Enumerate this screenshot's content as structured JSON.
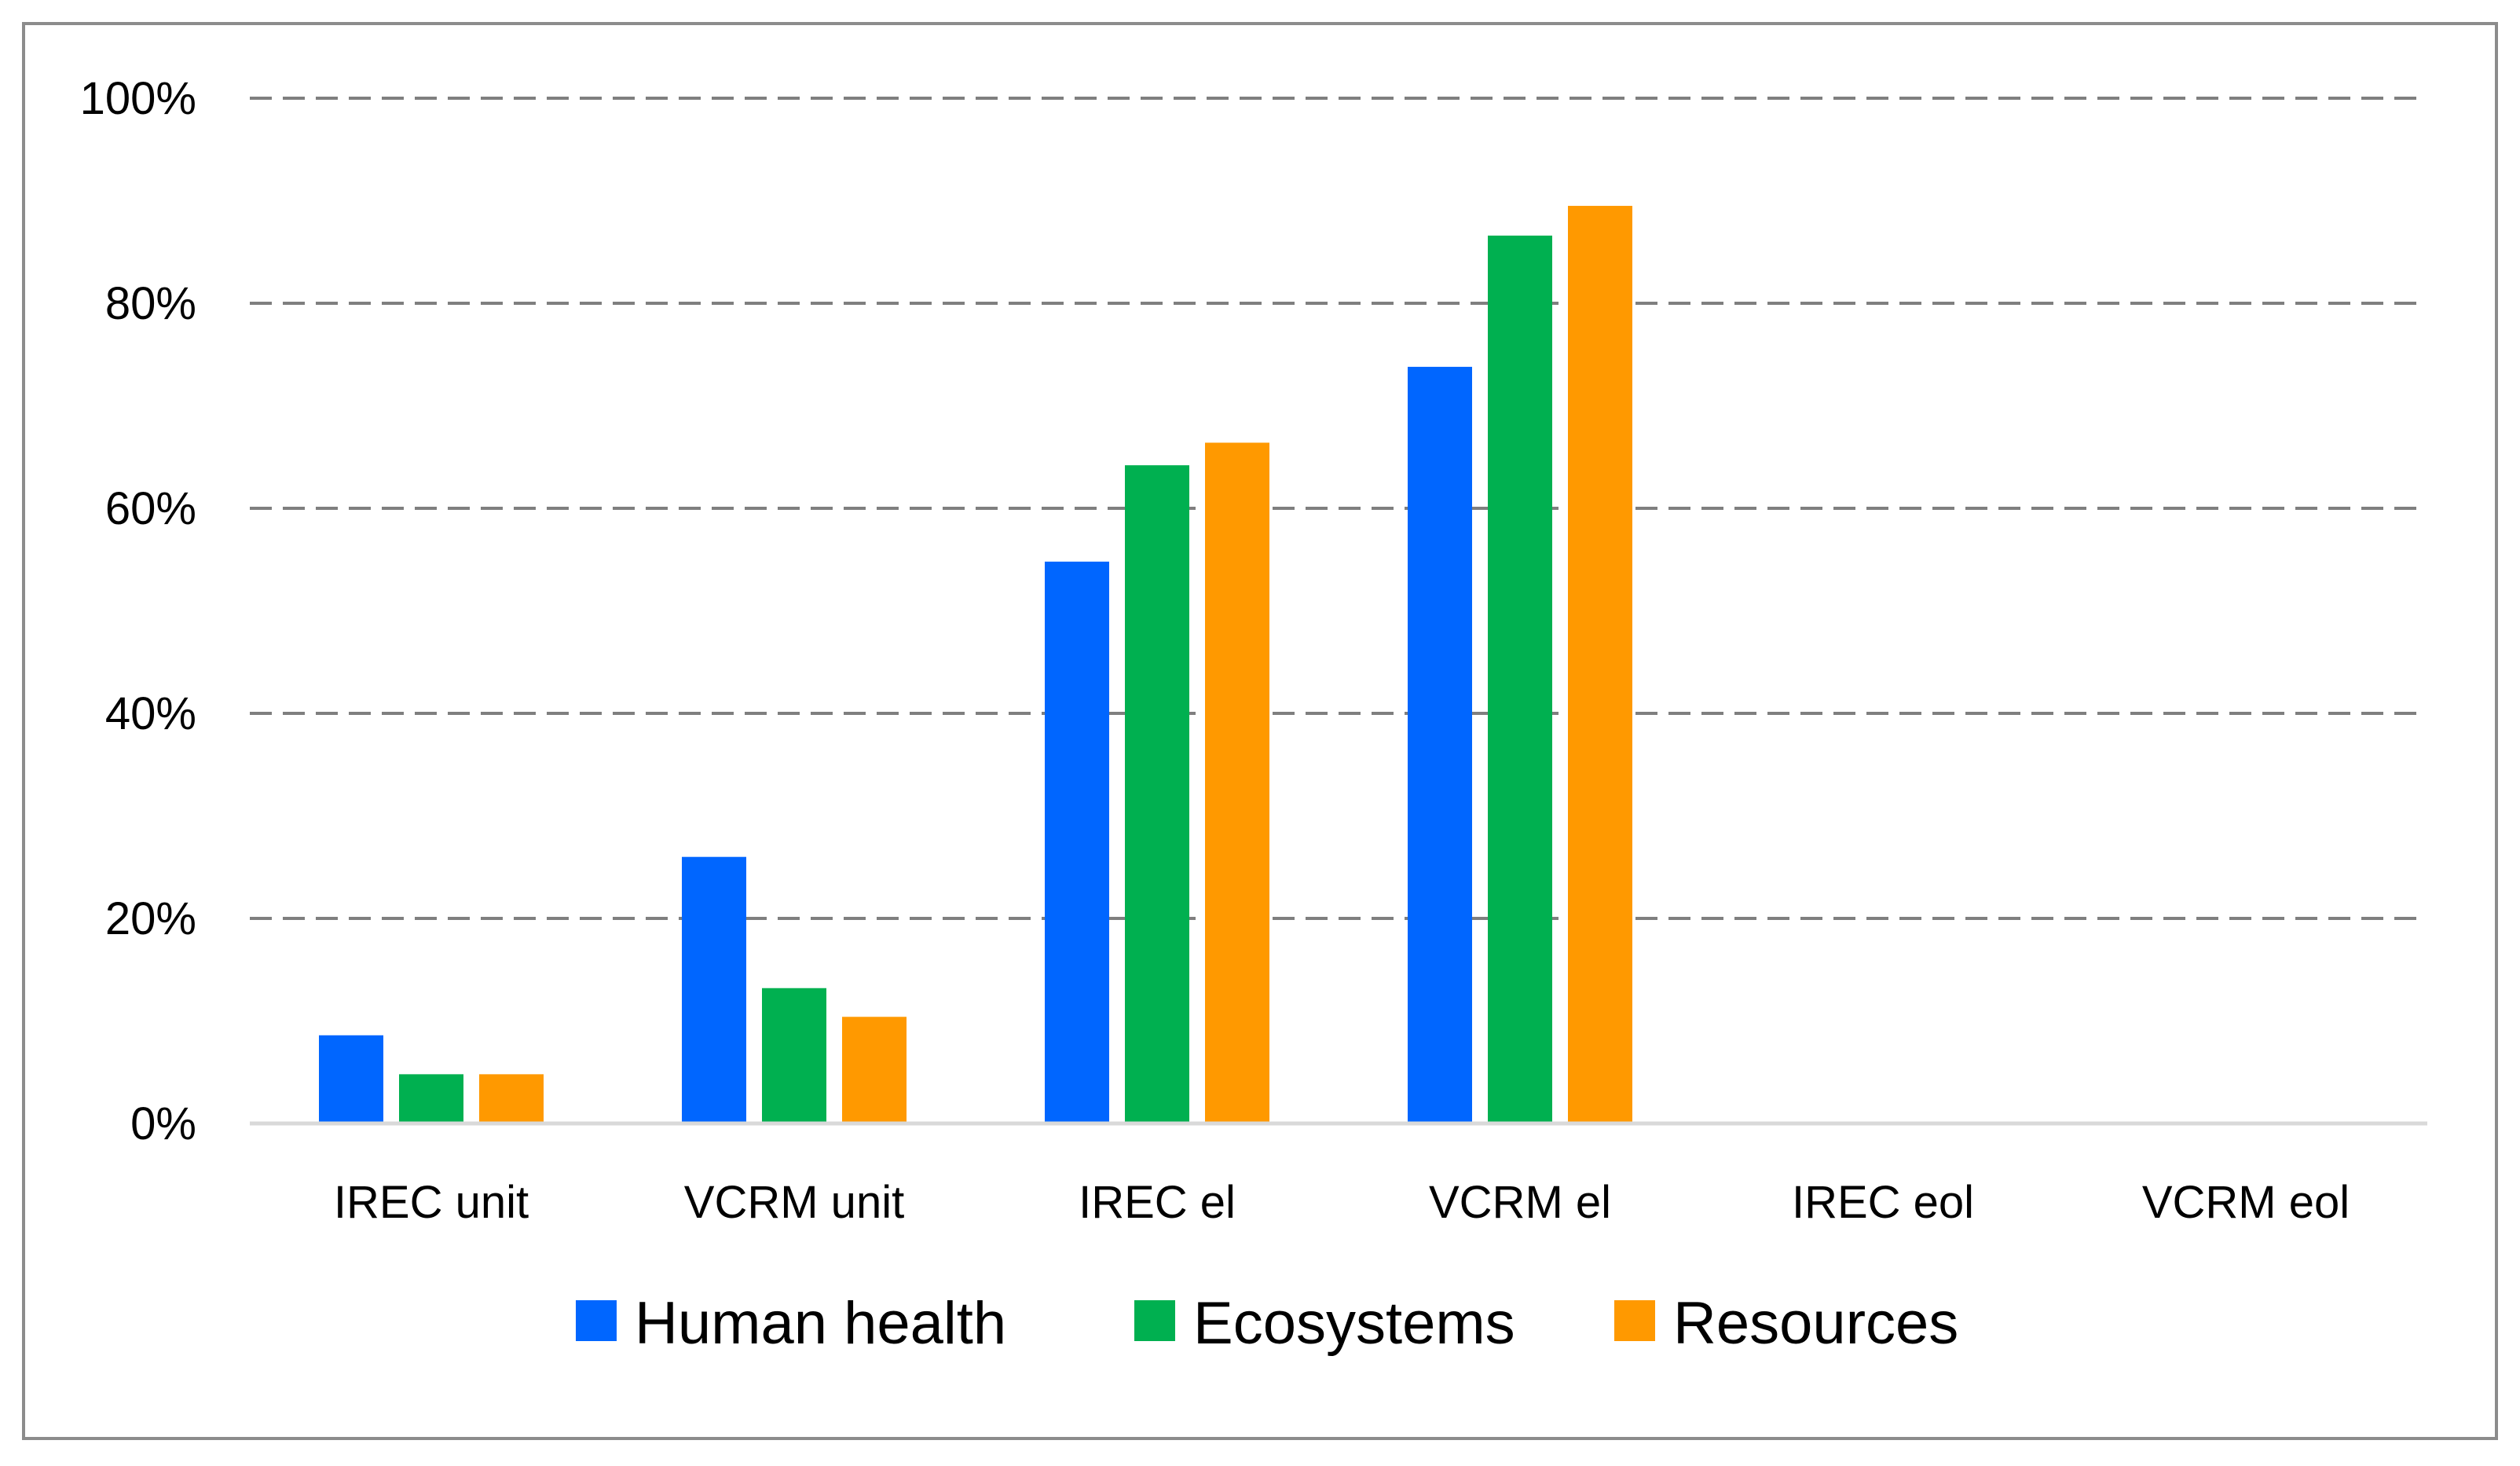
{
  "chart_data": {
    "type": "bar",
    "title": "",
    "xlabel": "",
    "ylabel": "",
    "ylim": [
      0,
      100
    ],
    "y_ticks": [
      "0%",
      "20%",
      "40%",
      "60%",
      "80%",
      "100%"
    ],
    "y_tick_values": [
      0,
      20,
      40,
      60,
      80,
      100
    ],
    "grid": "horizontal dashed",
    "legend_position": "bottom",
    "categories": [
      "IREC unit",
      "VCRM unit",
      "IREC el",
      "VCRM el",
      "IREC eol",
      "VCRM eol"
    ],
    "series": [
      {
        "name": "Human health",
        "color": "#0066FF",
        "values": [
          8.6,
          26.0,
          54.8,
          73.8,
          0,
          0
        ]
      },
      {
        "name": "Ecosystems",
        "color": "#00B050",
        "values": [
          4.8,
          13.2,
          64.2,
          86.6,
          0,
          0
        ]
      },
      {
        "name": "Resources",
        "color": "#FF9900",
        "values": [
          4.8,
          10.4,
          66.4,
          89.5,
          0,
          0
        ]
      }
    ]
  }
}
